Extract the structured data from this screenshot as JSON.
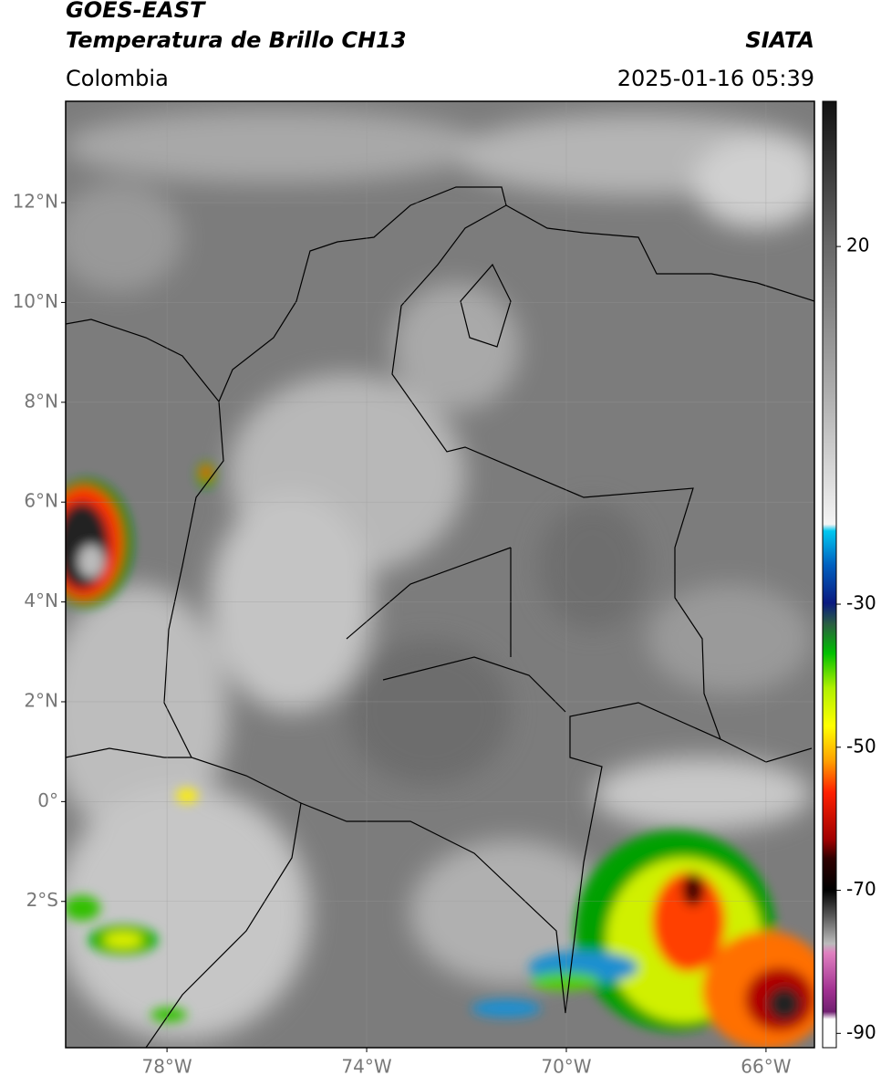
{
  "header": {
    "title": "GOES-EAST",
    "subtitle": "Temperatura de Brillo CH13",
    "source": "SIATA",
    "region": "Colombia",
    "timestamp": "2025-01-16 05:39"
  },
  "map": {
    "lon_range": [
      -80.03,
      -65.03
    ],
    "lat_range": [
      -4.93,
      14.03
    ],
    "lat_ticks": [
      {
        "value": 12,
        "label": "12°N"
      },
      {
        "value": 10,
        "label": "10°N"
      },
      {
        "value": 8,
        "label": "8°N"
      },
      {
        "value": 6,
        "label": "6°N"
      },
      {
        "value": 4,
        "label": "4°N"
      },
      {
        "value": 2,
        "label": "2°N"
      },
      {
        "value": 0,
        "label": "0°"
      },
      {
        "value": -2,
        "label": "2°S"
      }
    ],
    "lon_ticks": [
      {
        "value": -78,
        "label": "78°W"
      },
      {
        "value": -74,
        "label": "74°W"
      },
      {
        "value": -70,
        "label": "70°W"
      },
      {
        "value": -66,
        "label": "66°W"
      }
    ]
  },
  "colorbar": {
    "range": [
      -92,
      40.3
    ],
    "ticks": [
      20,
      -30,
      -50,
      -70,
      -90
    ]
  }
}
